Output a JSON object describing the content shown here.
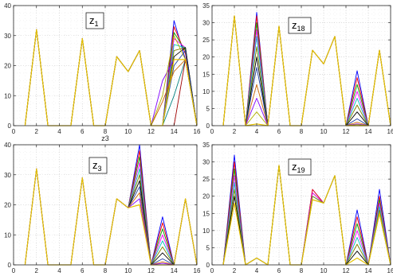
{
  "chart_data": [
    {
      "type": "line",
      "label_main": "z",
      "label_sub": "1",
      "xlim": [
        0,
        16
      ],
      "ylim": [
        0,
        40
      ],
      "xticks": [
        0,
        2,
        4,
        6,
        8,
        10,
        12,
        14,
        16
      ],
      "yticks": [
        0,
        10,
        20,
        30,
        40
      ],
      "xlabel": "z3",
      "grid": true,
      "x": [
        1,
        2,
        3,
        4,
        5,
        6,
        7,
        8,
        9,
        10,
        11,
        12,
        13,
        14,
        15,
        16
      ],
      "base": [
        0,
        32,
        0,
        0,
        0,
        29,
        0,
        0,
        23,
        18,
        25,
        0
      ],
      "tail_series": [
        [
          0,
          35,
          22,
          0
        ],
        [
          0,
          33,
          24,
          0
        ],
        [
          0,
          31,
          25,
          0
        ],
        [
          0,
          29,
          26,
          0
        ],
        [
          0,
          27,
          26,
          0
        ],
        [
          0,
          25,
          26,
          0
        ],
        [
          0,
          23,
          26,
          0
        ],
        [
          0,
          20,
          25,
          0
        ],
        [
          8,
          18,
          22,
          0
        ],
        [
          15,
          22,
          22,
          0
        ],
        [
          10,
          30,
          22,
          0
        ],
        [
          0,
          10,
          22,
          0
        ],
        [
          0,
          0,
          22,
          0
        ]
      ]
    },
    {
      "type": "line",
      "label_main": "z",
      "label_sub": "18",
      "xlim": [
        0,
        16
      ],
      "ylim": [
        0,
        35
      ],
      "xticks": [
        0,
        2,
        4,
        6,
        8,
        10,
        12,
        14,
        16
      ],
      "yticks": [
        0,
        5,
        10,
        15,
        20,
        25,
        30,
        35
      ],
      "grid": true,
      "x": [
        1,
        2,
        3,
        4,
        5,
        6,
        7,
        8,
        9,
        10,
        11,
        12,
        13,
        14,
        15,
        16
      ],
      "peak4": [
        33,
        32,
        30,
        28,
        26,
        23,
        20,
        17,
        12,
        8,
        4,
        0.5
      ],
      "peak13": [
        16,
        14,
        12,
        10,
        8,
        6,
        4,
        2,
        1,
        0.5,
        0.3,
        0
      ],
      "template": [
        0,
        32,
        0,
        null,
        0,
        29,
        0,
        0,
        22,
        18,
        26,
        0,
        null,
        0,
        22,
        0
      ]
    },
    {
      "type": "line",
      "label_main": "z",
      "label_sub": "3",
      "xlim": [
        0,
        16
      ],
      "ylim": [
        0,
        40
      ],
      "xticks": [
        0,
        2,
        4,
        6,
        8,
        10,
        12,
        14,
        16
      ],
      "yticks": [
        0,
        10,
        20,
        30,
        40
      ],
      "grid": true,
      "x": [
        1,
        2,
        3,
        4,
        5,
        6,
        7,
        8,
        9,
        10,
        11,
        12,
        13,
        14,
        15,
        16
      ],
      "peak11": [
        40,
        38,
        36,
        34,
        32,
        30,
        28,
        26,
        24,
        22,
        20
      ],
      "peak13": [
        16,
        14,
        12,
        10,
        8,
        6,
        4,
        2,
        1,
        0.5,
        0
      ],
      "template": [
        0,
        32,
        0,
        0,
        0,
        29,
        0,
        0,
        22,
        19,
        null,
        0,
        null,
        0,
        22,
        0
      ]
    },
    {
      "type": "line",
      "label_main": "z",
      "label_sub": "19",
      "xlim": [
        0,
        16
      ],
      "ylim": [
        0,
        35
      ],
      "xticks": [
        0,
        2,
        4,
        6,
        8,
        10,
        12,
        14,
        16
      ],
      "yticks": [
        0,
        5,
        10,
        15,
        20,
        25,
        30,
        35
      ],
      "grid": true,
      "x": [
        1,
        2,
        3,
        4,
        5,
        6,
        7,
        8,
        9,
        10,
        11,
        12,
        13,
        14,
        15,
        16
      ],
      "peak2": [
        32,
        30,
        28,
        26,
        24,
        22,
        20,
        18
      ],
      "peak13": [
        16,
        14,
        12,
        10,
        8,
        6,
        4,
        2
      ],
      "peak15": [
        22,
        20,
        19,
        18,
        17,
        16,
        15,
        15
      ],
      "peak9": [
        22,
        22,
        21,
        21,
        20,
        20,
        19,
        19
      ],
      "template": [
        0,
        null,
        0,
        2,
        0,
        29,
        0,
        0,
        null,
        18,
        26,
        0,
        null,
        0,
        null,
        0
      ]
    }
  ],
  "palette": [
    "#0000ff",
    "#ff0000",
    "#00a000",
    "#ff00ff",
    "#00bfbf",
    "#808000",
    "#000000",
    "#1f3fa0",
    "#cc6600",
    "#7f00ff",
    "#b0b000",
    "#008080",
    "#a00000",
    "#3399ff",
    "#e6c300"
  ]
}
